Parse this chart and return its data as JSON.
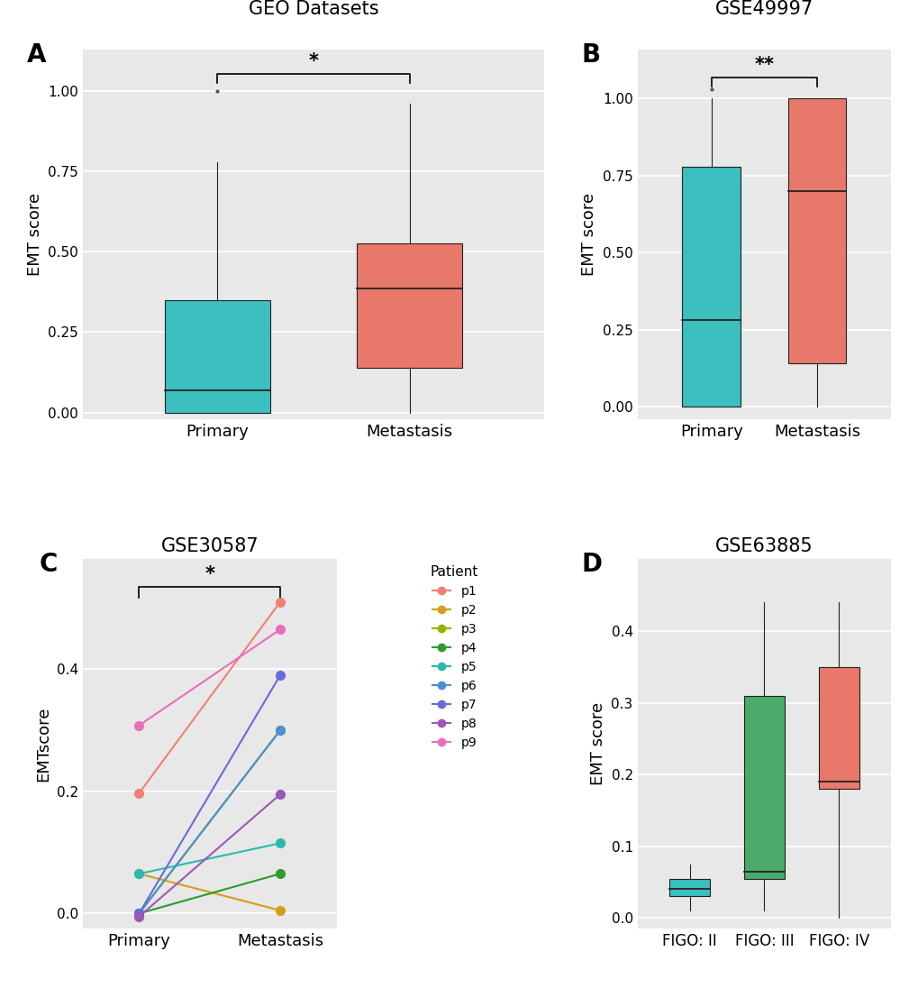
{
  "panel_A": {
    "title": "GEO Datasets",
    "xlabel_primary": "Primary",
    "xlabel_metastasis": "Metastasis",
    "ylabel": "EMT score",
    "primary": {
      "Q1": 0.0,
      "Q2": 0.07,
      "Q3": 0.35,
      "whisker_low": 0.0,
      "whisker_high": 0.78,
      "outliers": [
        1.0
      ],
      "color": "#3bbfbf"
    },
    "metastasis": {
      "Q1": 0.14,
      "Q2": 0.385,
      "Q3": 0.525,
      "whisker_low": 0.0,
      "whisker_high": 0.96,
      "outliers": [],
      "color": "#e8796a"
    },
    "sig": "*",
    "ylim": [
      -0.02,
      1.13
    ],
    "yticks": [
      0.0,
      0.25,
      0.5,
      0.75,
      1.0
    ]
  },
  "panel_B": {
    "title": "GSE49997",
    "xlabel_primary": "Primary",
    "xlabel_metastasis": "Metastasis",
    "ylabel": "EMT score",
    "primary": {
      "Q1": 0.0,
      "Q2": 0.28,
      "Q3": 0.78,
      "whisker_low": 0.0,
      "whisker_high": 1.0,
      "outliers": [
        1.03
      ],
      "color": "#3bbfbf"
    },
    "metastasis": {
      "Q1": 0.14,
      "Q2": 0.7,
      "Q3": 1.0,
      "whisker_low": 0.0,
      "whisker_high": 1.0,
      "outliers": [],
      "color": "#e8796a"
    },
    "sig": "**",
    "ylim": [
      -0.04,
      1.16
    ],
    "yticks": [
      0.0,
      0.25,
      0.5,
      0.75,
      1.0
    ]
  },
  "panel_C": {
    "title": "GSE30587",
    "xlabel_primary": "Primary",
    "xlabel_metastasis": "Metastasis",
    "ylabel": "EMTscore",
    "sig": "*",
    "ylim": [
      -0.025,
      0.58
    ],
    "yticks": [
      0.0,
      0.2,
      0.4
    ],
    "patients": {
      "p1": {
        "primary": 0.197,
        "metastasis": 0.51,
        "color": "#f08070"
      },
      "p2": {
        "primary": 0.065,
        "metastasis": 0.005,
        "color": "#d4a017"
      },
      "p3": {
        "primary": 0.0,
        "metastasis": 0.3,
        "color": "#8db600"
      },
      "p4": {
        "primary": 0.0,
        "metastasis": 0.065,
        "color": "#2a9d2a"
      },
      "p5": {
        "primary": 0.065,
        "metastasis": 0.115,
        "color": "#2abaad"
      },
      "p6": {
        "primary": 0.0,
        "metastasis": 0.3,
        "color": "#4a90d4"
      },
      "p7": {
        "primary": 0.0,
        "metastasis": 0.39,
        "color": "#6a6adb"
      },
      "p8": {
        "primary": -0.005,
        "metastasis": 0.195,
        "color": "#9b59b6"
      },
      "p9": {
        "primary": 0.308,
        "metastasis": 0.465,
        "color": "#e96eba"
      }
    }
  },
  "panel_D": {
    "title": "GSE63885",
    "ylabel": "EMT score",
    "categories": [
      "FIGO: II",
      "FIGO: III",
      "FIGO: IV"
    ],
    "boxes": [
      {
        "Q1": 0.03,
        "Q2": 0.04,
        "Q3": 0.055,
        "whisker_low": 0.01,
        "whisker_high": 0.075,
        "color": "#3bbfbf"
      },
      {
        "Q1": 0.055,
        "Q2": 0.065,
        "Q3": 0.31,
        "whisker_low": 0.01,
        "whisker_high": 0.44,
        "color": "#4aab6a"
      },
      {
        "Q1": 0.18,
        "Q2": 0.19,
        "Q3": 0.35,
        "whisker_low": 0.0,
        "whisker_high": 0.44,
        "color": "#e8796a"
      }
    ],
    "ylim": [
      -0.015,
      0.5
    ],
    "yticks": [
      0.0,
      0.1,
      0.2,
      0.3,
      0.4
    ]
  },
  "bg_color": "#e8e8e8",
  "panel_label_fontsize": 20,
  "title_fontsize": 15,
  "axis_label_fontsize": 13,
  "tick_fontsize": 11
}
